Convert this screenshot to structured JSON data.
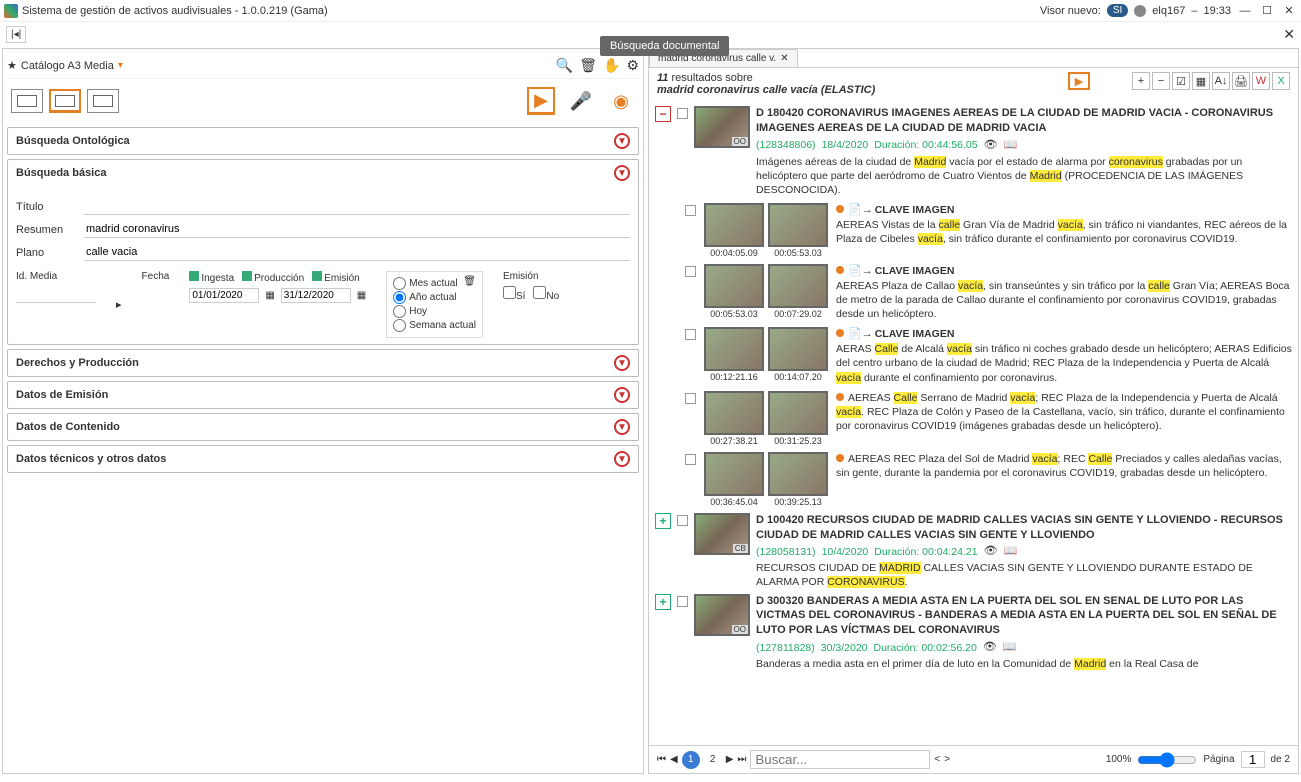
{
  "titlebar": {
    "app_title": "Sistema de gestión de activos audivisuales - 1.0.0.219 (Gama)",
    "visor_label": "Visor nuevo:",
    "toggle_value": "SI",
    "user": "elq167",
    "time": "19:33"
  },
  "tooltip": "Búsqueda documental",
  "catalog": {
    "label": "Catálogo A3 Media"
  },
  "accordions": {
    "ontologica": "Búsqueda Ontológica",
    "basica": "Búsqueda básica",
    "derechos": "Derechos y Producción",
    "emision": "Datos de Emisión",
    "contenido": "Datos de Contenido",
    "tecnicos": "Datos técnicos y otros datos"
  },
  "form": {
    "titulo_label": "Título",
    "resumen_label": "Resumen",
    "resumen_value": "madrid coronavirus",
    "plano_label": "Plano",
    "plano_value": "calle vacia",
    "idmedia_label": "Id. Media",
    "fecha_label": "Fecha",
    "ingesta": "Ingesta",
    "produccion": "Producción",
    "emision_chk": "Emisión",
    "date_from": "01/01/2020",
    "date_to": "31/12/2020",
    "mes_actual": "Mes actual",
    "ano_actual": "Año actual",
    "hoy": "Hoy",
    "semana_actual": "Semana actual",
    "emision_label": "Emisión",
    "si": "Sí",
    "no": "No"
  },
  "tab": {
    "label": "madrid coronavirus calle v."
  },
  "results": {
    "count_prefix": "11",
    "count_text": " resultados sobre",
    "query": "madrid coronavirus calle vacía (ELASTIC)"
  },
  "items": [
    {
      "expand": "−",
      "title": "D 180420 CORONAVIRUS IMAGENES AEREAS DE LA CIUDAD DE MADRID VACIA - CORONAVIRUS IMAGENES AEREAS DE LA CIUDAD DE MADRID VACIA",
      "id": "(128348806)",
      "date": "18/4/2020",
      "duration": "Duración: 00:44:56.05",
      "badge": "OO",
      "desc_pre": "Imágenes aéreas de la ciudad de ",
      "desc_hl1": "Madrid",
      "desc_mid1": " vacía por el estado de alarma por ",
      "desc_hl2": "coronavirus",
      "desc_mid2": " grabadas por un helicóptero que parte del aeródromo de Cuatro Vientos de ",
      "desc_hl3": "Madrid",
      "desc_end": " (PROCEDENCIA DE LAS IMÁGENES DESCONOCIDA).",
      "subs": [
        {
          "tc1": "00:04:05.09",
          "tc2": "00:05:53.03",
          "clave": "CLAVE IMAGEN",
          "text": "AEREAS Vistas de la |calle| Gran Vía de Madrid |vacía|, sin tráfico ni viandantes, REC aéreos de la Plaza de Cibeles |vacía|, sin tráfico durante el confinamiento por coronavirus COVID19."
        },
        {
          "tc1": "00:05:53.03",
          "tc2": "00:07:29.02",
          "clave": "CLAVE IMAGEN",
          "text": "AEREAS Plaza de Callao |vacía|, sin transeúntes y sin tráfico por la |calle| Gran Vía; AEREAS Boca de metro de la parada de Callao durante el confinamiento por coronavirus COVID19, grabadas desde un helicóptero."
        },
        {
          "tc1": "00:12:21.16",
          "tc2": "00:14:07.20",
          "clave": "CLAVE IMAGEN",
          "text": "AERAS |Calle| de Alcalá |vacía| sin tráfico ni coches grabado desde un helicóptero; AERAS Edificios del centro urbano de la ciudad de Madrid; REC Plaza de la Independencia y Puerta de Alcalá |vacía| durante el confinamiento por coronavirus."
        },
        {
          "tc1": "00:27:38.21",
          "tc2": "00:31:25.23",
          "clave": "",
          "text": "AEREAS |Calle| Serrano de Madrid |vacía|; REC Plaza de la Independencia y Puerta de Alcalá  |vacía|. REC Plaza de Colón y Paseo de la Castellana, vacío, sin tráfico, durante el confinamiento por coronavirus COVID19 (imágenes grabadas desde un helicóptero)."
        },
        {
          "tc1": "00:36:45.04",
          "tc2": "00:39:25.13",
          "clave": "",
          "text": "AEREAS REC Plaza del Sol de Madrid |vacía|; REC |Calle| Preciados y calles aledañas vacías, sin gente, durante la pandemia por el coronavirus COVID19, grabadas desde un helicóptero."
        }
      ]
    },
    {
      "expand": "+",
      "title": "D 100420 RECURSOS CIUDAD DE MADRID CALLES VACIAS SIN GENTE Y LLOVIENDO - RECURSOS CIUDAD DE MADRID CALLES VACIAS SIN GENTE Y LLOVIENDO",
      "id": "(128058131)",
      "date": "10/4/2020",
      "duration": "Duración: 00:04:24.21",
      "badge": "CB",
      "desc": "RECURSOS CIUDAD DE |MADRID| CALLES VACIAS SIN GENTE Y LLOVIENDO DURANTE ESTADO DE ALARMA POR |CORONAVIRUS|."
    },
    {
      "expand": "+",
      "title": "D 300320 BANDERAS A MEDIA ASTA EN LA PUERTA DEL SOL EN SENAL DE LUTO POR LAS VICTMAS DEL CORONAVIRUS  - BANDERAS A MEDIA ASTA EN LA PUERTA DEL SOL EN SEÑAL DE LUTO POR LAS VÍCTMAS DEL CORONAVIRUS",
      "id": "(127811828)",
      "date": "30/3/2020",
      "duration": "Duración: 00:02:56.20",
      "badge": "OO",
      "desc": "Banderas a media asta en el primer día de luto en la Comunidad de |Madrid| en la Real Casa de"
    }
  ],
  "pager": {
    "buscar": "Buscar...",
    "zoom": "100%",
    "pagina": "Página",
    "page_val": "1",
    "de": "de 2",
    "p2": "2"
  }
}
